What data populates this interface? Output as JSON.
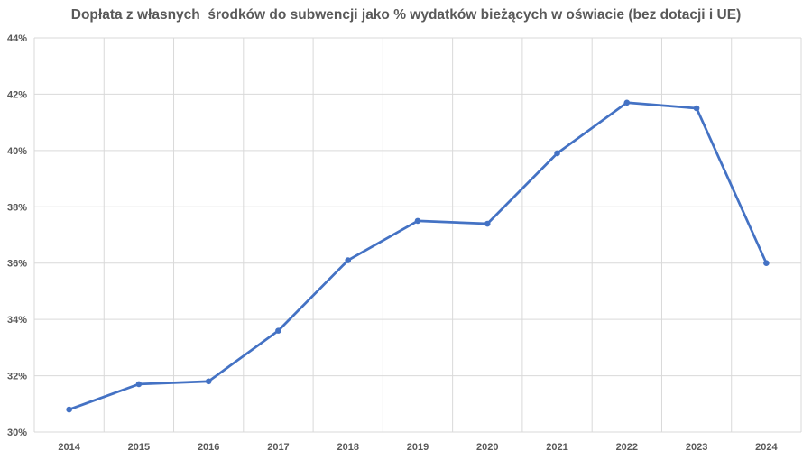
{
  "chart_data": {
    "type": "line",
    "title": "Dopłata z własnych  środków do subwencji jako % wydatków bieżących w oświacie (bez dotacji i UE)",
    "xlabel": "",
    "ylabel": "",
    "categories": [
      "2014",
      "2015",
      "2016",
      "2017",
      "2018",
      "2019",
      "2020",
      "2021",
      "2022",
      "2023",
      "2024"
    ],
    "series": [
      {
        "values": [
          30.8,
          31.7,
          31.8,
          33.6,
          36.1,
          37.5,
          37.4,
          39.9,
          41.7,
          41.5,
          36.0
        ]
      }
    ],
    "ylim": [
      30,
      44
    ],
    "yticks": [
      30,
      32,
      34,
      36,
      38,
      40,
      42,
      44
    ],
    "ytick_labels": [
      "30%",
      "32%",
      "34%",
      "36%",
      "38%",
      "40%",
      "42%",
      "44%"
    ],
    "grid": true,
    "legend": "none",
    "line_color": "#4472C4",
    "grid_color": "#D9D9D9",
    "text_color": "#595959"
  }
}
